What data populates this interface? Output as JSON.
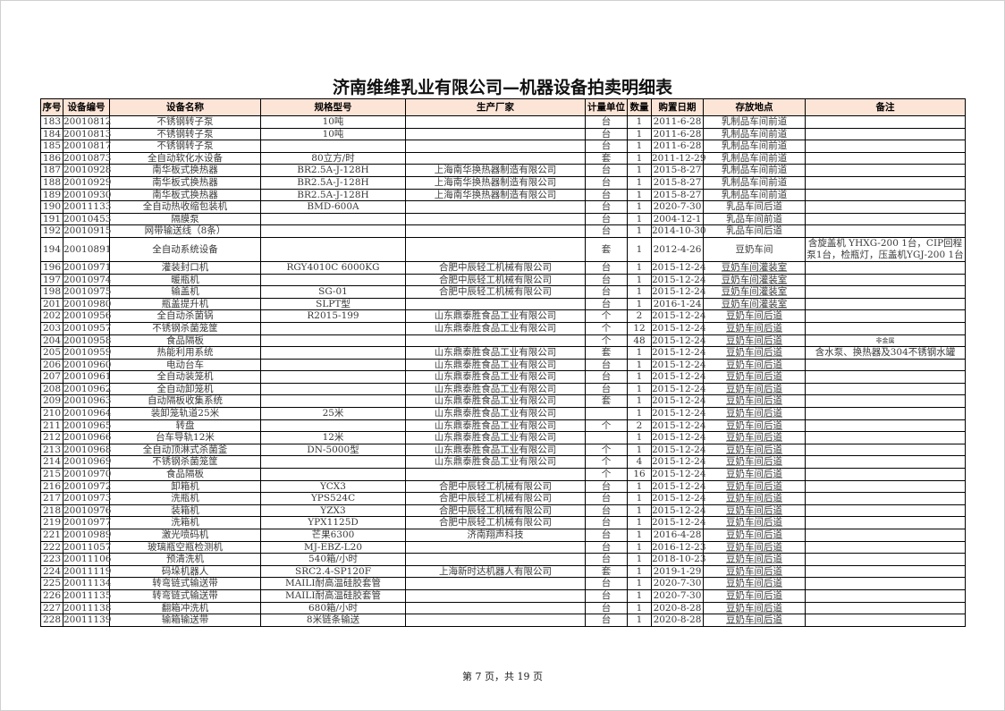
{
  "title": "济南维维乳业有限公司—机器设备拍卖明细表",
  "columns": [
    "序号",
    "设备编号",
    "设备名称",
    "规格型号",
    "生产厂家",
    "计量单位",
    "数量",
    "购置日期",
    "存放地点",
    "备注"
  ],
  "rows": [
    [
      "183",
      "20010812",
      "不锈钢转子泵",
      "10吨",
      "",
      "台",
      "1",
      "2011-6-28",
      "乳制品车间前道",
      ""
    ],
    [
      "184",
      "20010813",
      "不锈钢转子泵",
      "10吨",
      "",
      "台",
      "1",
      "2011-6-28",
      "乳制品车间前道",
      ""
    ],
    [
      "185",
      "20010817",
      "不锈钢转子泵",
      "",
      "",
      "台",
      "1",
      "2011-6-28",
      "乳制品车间前道",
      ""
    ],
    [
      "186",
      "20010873",
      "全自动软化水设备",
      "80立方/时",
      "",
      "套",
      "1",
      "2011-12-29",
      "乳制品车间前道",
      ""
    ],
    [
      "187",
      "20010928",
      "南华板式换热器",
      "BR2.5A-J-128H",
      "上海南华换热器制造有限公司",
      "台",
      "1",
      "2015-8-27",
      "乳制品车间前道",
      ""
    ],
    [
      "188",
      "20010929",
      "南华板式换热器",
      "BR2.5A-J-128H",
      "上海南华换热器制造有限公司",
      "台",
      "1",
      "2015-8-27",
      "乳制品车间前道",
      ""
    ],
    [
      "189",
      "20010930",
      "南华板式换热器",
      "BR2.5A-J-128H",
      "上海南华换热器制造有限公司",
      "台",
      "1",
      "2015-8-27",
      "乳制品车间前道",
      ""
    ],
    [
      "190",
      "20011133",
      "全自动热收缩包装机",
      "BMD-600A",
      "",
      "台",
      "1",
      "2020-7-30",
      "乳品车间后道",
      ""
    ],
    [
      "191",
      "20010453",
      "隔膜泵",
      "",
      "",
      "台",
      "1",
      "2004-12-1",
      "乳品车间前道",
      ""
    ],
    [
      "192",
      "20010915",
      "网带输送线（8条）",
      "",
      "",
      "台",
      "1",
      "2014-10-30",
      "乳品车间后道",
      ""
    ],
    [
      "194",
      "20010891",
      "全自动系统设备",
      "",
      "",
      "套",
      "1",
      "2012-4-26",
      "豆奶车间",
      "含旋盖机 YHXG-200 1台，CIP回程泵1台，检瓶灯，压盖机YGJ-200 1台"
    ],
    [
      "196",
      "20010971",
      "灌装封口机",
      "RGY4010C 6000KG",
      "合肥中辰轻工机械有限公司",
      "台",
      "1",
      "2015-12-24",
      "豆奶车间灌装室",
      ""
    ],
    [
      "197",
      "20010974",
      "暖瓶机",
      "",
      "合肥中辰轻工机械有限公司",
      "台",
      "1",
      "2015-12-24",
      "豆奶车间灌装室",
      ""
    ],
    [
      "198",
      "20010975",
      "输盖机",
      "SG-01",
      "合肥中辰轻工机械有限公司",
      "台",
      "1",
      "2015-12-24",
      "豆奶车间灌装室",
      ""
    ],
    [
      "201",
      "20010980",
      "瓶盖提升机",
      "SLPT型",
      "",
      "台",
      "1",
      "2016-1-24",
      "豆奶车间灌装室",
      ""
    ],
    [
      "202",
      "20010956",
      "全自动杀菌锅",
      "R2015-199",
      "山东鼎泰胜食品工业有限公司",
      "个",
      "2",
      "2015-12-24",
      "豆奶车间后道",
      ""
    ],
    [
      "203",
      "20010957",
      "不锈钢杀菌笼筐",
      "",
      "山东鼎泰胜食品工业有限公司",
      "个",
      "12",
      "2015-12-24",
      "豆奶车间后道",
      ""
    ],
    [
      "204",
      "20010958",
      "食品隔板",
      "",
      "",
      "个",
      "48",
      "2015-12-24",
      "豆奶车间后道",
      "非金属"
    ],
    [
      "205",
      "20010959",
      "热能利用系统",
      "",
      "山东鼎泰胜食品工业有限公司",
      "套",
      "1",
      "2015-12-24",
      "豆奶车间后道",
      "含水泵、换热器及304不锈钢水罐"
    ],
    [
      "206",
      "20010960",
      "电动台车",
      "",
      "山东鼎泰胜食品工业有限公司",
      "台",
      "1",
      "2015-12-24",
      "豆奶车间后道",
      ""
    ],
    [
      "207",
      "20010961",
      "全自动装笼机",
      "",
      "山东鼎泰胜食品工业有限公司",
      "台",
      "1",
      "2015-12-24",
      "豆奶车间后道",
      ""
    ],
    [
      "208",
      "20010962",
      "全自动卸笼机",
      "",
      "山东鼎泰胜食品工业有限公司",
      "台",
      "1",
      "2015-12-24",
      "豆奶车间后道",
      ""
    ],
    [
      "209",
      "20010963",
      "自动隔板收集系统",
      "",
      "山东鼎泰胜食品工业有限公司",
      "套",
      "1",
      "2015-12-24",
      "豆奶车间后道",
      ""
    ],
    [
      "210",
      "20010964",
      "装卸笼轨道25米",
      "25米",
      "山东鼎泰胜食品工业有限公司",
      "",
      "1",
      "2015-12-24",
      "豆奶车间后道",
      ""
    ],
    [
      "211",
      "20010965",
      "转盘",
      "",
      "山东鼎泰胜食品工业有限公司",
      "个",
      "2",
      "2015-12-24",
      "豆奶车间后道",
      ""
    ],
    [
      "212",
      "20010966",
      "台车导轨12米",
      "12米",
      "山东鼎泰胜食品工业有限公司",
      "",
      "1",
      "2015-12-24",
      "豆奶车间后道",
      ""
    ],
    [
      "213",
      "20010968",
      "全自动顶淋式杀菌釜",
      "DN-5000型",
      "山东鼎泰胜食品工业有限公司",
      "个",
      "1",
      "2015-12-24",
      "豆奶车间后道",
      ""
    ],
    [
      "214",
      "20010969",
      "不锈钢杀菌笼筐",
      "",
      "山东鼎泰胜食品工业有限公司",
      "个",
      "4",
      "2015-12-24",
      "豆奶车间后道",
      ""
    ],
    [
      "215",
      "20010970",
      "食品隔板",
      "",
      "",
      "个",
      "16",
      "2015-12-24",
      "豆奶车间后道",
      ""
    ],
    [
      "216",
      "20010972",
      "卸箱机",
      "YCX3",
      "合肥中辰轻工机械有限公司",
      "台",
      "1",
      "2015-12-24",
      "豆奶车间后道",
      ""
    ],
    [
      "217",
      "20010973",
      "洗瓶机",
      "YPS524C",
      "合肥中辰轻工机械有限公司",
      "台",
      "1",
      "2015-12-24",
      "豆奶车间后道",
      ""
    ],
    [
      "218",
      "20010976",
      "装箱机",
      "YZX3",
      "合肥中辰轻工机械有限公司",
      "台",
      "1",
      "2015-12-24",
      "豆奶车间后道",
      ""
    ],
    [
      "219",
      "20010977",
      "洗箱机",
      "YPX1125D",
      "合肥中辰轻工机械有限公司",
      "台",
      "1",
      "2015-12-24",
      "豆奶车间后道",
      ""
    ],
    [
      "221",
      "20010989",
      "激光喷码机",
      "芒果6300",
      "济南翔声科技",
      "台",
      "1",
      "2016-4-28",
      "豆奶车间后道",
      ""
    ],
    [
      "222",
      "20011057",
      "玻璃瓶空瓶检测机",
      "MJ-EBZ-L20",
      "",
      "台",
      "1",
      "2016-12-23",
      "豆奶车间后道",
      ""
    ],
    [
      "223",
      "20011106",
      "预清洗机",
      "540箱/小时",
      "",
      "台",
      "1",
      "2018-10-23",
      "豆奶车间后道",
      ""
    ],
    [
      "224",
      "20011119",
      "码垛机器人",
      "SRC2.4-SP120F",
      "上海新时达机器人有限公司",
      "套",
      "1",
      "2019-1-29",
      "豆奶车间后道",
      ""
    ],
    [
      "225",
      "20011134",
      "转弯链式输送带",
      "MAILI耐高温硅胶套管",
      "",
      "台",
      "1",
      "2020-7-30",
      "豆奶车间后道",
      ""
    ],
    [
      "226",
      "20011135",
      "转弯链式输送带",
      "MAILI耐高温硅胶套管",
      "",
      "台",
      "1",
      "2020-7-30",
      "豆奶车间后道",
      ""
    ],
    [
      "227",
      "20011138",
      "翻箱冲洗机",
      "680箱/小时",
      "",
      "台",
      "1",
      "2020-8-28",
      "豆奶车间后道",
      ""
    ],
    [
      "228",
      "20011139",
      "输箱输送带",
      "8米链条输送",
      "",
      "台",
      "1",
      "2020-8-28",
      "豆奶车间后道",
      ""
    ]
  ],
  "footer": "第 7 页，共 19 页",
  "colors": {
    "header_bg": "#fce4d6"
  }
}
